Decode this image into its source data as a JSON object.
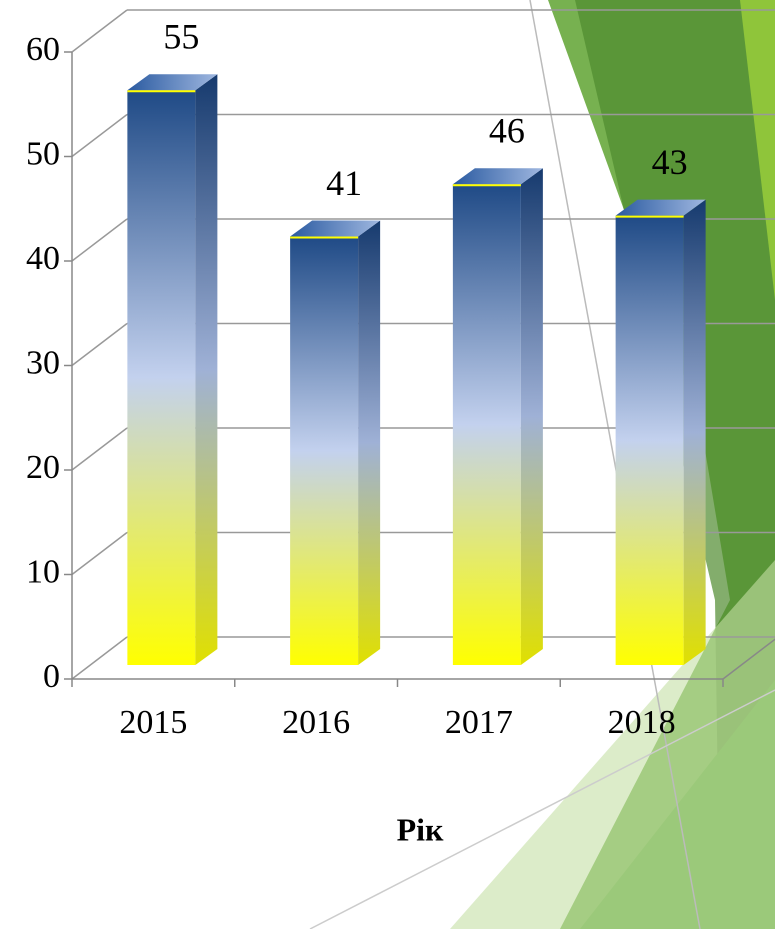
{
  "chart_data": {
    "type": "bar",
    "x_label": "Рік",
    "categories": [
      "2015",
      "2016",
      "2017",
      "2018"
    ],
    "values": [
      55,
      41,
      46,
      43
    ],
    "ylim": [
      0,
      60
    ],
    "yticks": [
      0,
      10,
      20,
      30,
      40,
      50,
      60
    ],
    "grid": true
  }
}
